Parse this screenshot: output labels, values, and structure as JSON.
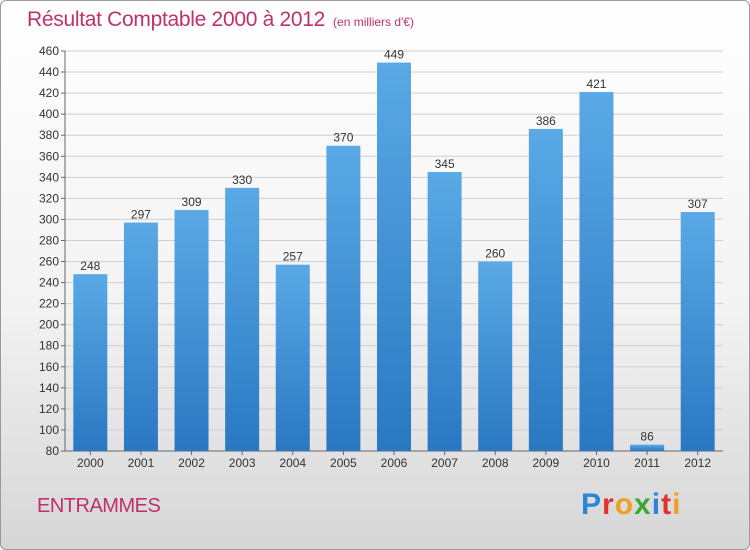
{
  "header": {
    "title": "Résultat Comptable 2000 à 2012",
    "subtitle": "(en milliers d'€)"
  },
  "footer": {
    "commune": "ENTRAMMES",
    "brand": [
      "P",
      "r",
      "o",
      "x",
      "i",
      "t",
      "i"
    ]
  },
  "colors": {
    "title": "#c0306a",
    "bar_top": "#5aa9e6",
    "bar_bottom": "#2a78c2",
    "grid": "#cfcfcf",
    "logo": [
      "#2a86d6",
      "#e0322f",
      "#f0a020",
      "#3aa832",
      "#2a86d6",
      "#e0322f",
      "#f0a020"
    ]
  },
  "chart_data": {
    "type": "bar",
    "categories": [
      "2000",
      "2001",
      "2002",
      "2003",
      "2004",
      "2005",
      "2006",
      "2007",
      "2008",
      "2009",
      "2010",
      "2011",
      "2012"
    ],
    "values": [
      248,
      297,
      309,
      330,
      257,
      370,
      449,
      345,
      260,
      386,
      421,
      86,
      307
    ],
    "data_labels": [
      "248",
      "297",
      "309",
      "330",
      "257",
      "370",
      "449",
      "345",
      "260",
      "386",
      "421",
      "86",
      "307"
    ],
    "title": "Résultat Comptable 2000 à 2012",
    "xlabel": "",
    "ylabel": "",
    "ylim": [
      80,
      460
    ],
    "yticks": [
      "80",
      "100",
      "120",
      "140",
      "160",
      "180",
      "200",
      "220",
      "240",
      "260",
      "280",
      "300",
      "320",
      "340",
      "360",
      "380",
      "400",
      "420",
      "440",
      "460"
    ],
    "grid": true,
    "legend": "none"
  }
}
